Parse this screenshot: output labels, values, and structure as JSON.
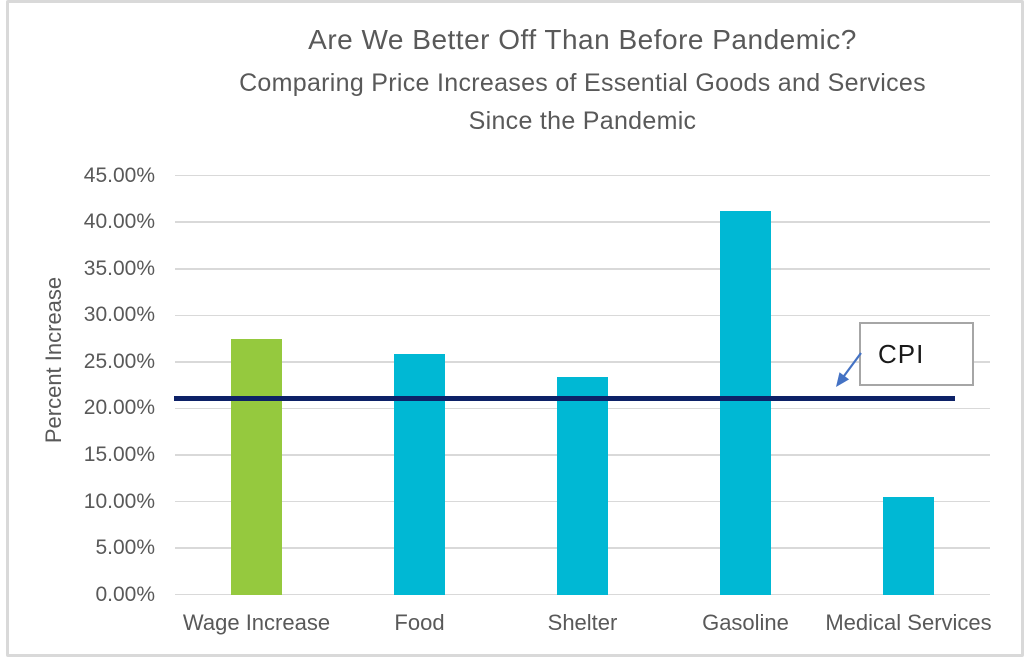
{
  "header": {
    "title": "Are We Better Off Than Before Pandemic?",
    "subtitle_line1": "Comparing Price Increases of Essential Goods and Services",
    "subtitle_line2": "Since the Pandemic"
  },
  "annotation": {
    "label": "CPI",
    "box_border_color": "#a6a6a6",
    "arrow_color": "#4472c4"
  },
  "colors": {
    "text_gray": "#595959",
    "gridline": "#d9d9d9",
    "frame_border": "#d9d9d9",
    "green_bar": "#95c93e",
    "cyan_bar": "#00b8d4",
    "cpi_line": "#0d2167"
  },
  "chart_data": {
    "type": "bar",
    "title": "Are We Better Off Than Before Pandemic?",
    "subtitle": "Comparing Price Increases of Essential Goods and Services Since the Pandemic",
    "categories": [
      "Wage Increase",
      "Food",
      "Shelter",
      "Gasoline",
      "Medical Services"
    ],
    "values": [
      27.5,
      25.8,
      23.4,
      41.2,
      10.5
    ],
    "bar_colors": [
      "#95c93e",
      "#00b8d4",
      "#00b8d4",
      "#00b8d4",
      "#00b8d4"
    ],
    "xlabel": "",
    "ylabel": "Percent Increase",
    "ylim": [
      0,
      45
    ],
    "ytick_interval": 5,
    "ytick_labels": [
      "0.00%",
      "5.00%",
      "10.00%",
      "15.00%",
      "20.00%",
      "25.00%",
      "30.00%",
      "35.00%",
      "40.00%",
      "45.00%"
    ],
    "grid": true,
    "legend_position": "none",
    "reference_line": {
      "label": "CPI",
      "value": 21.1,
      "color": "#0d2167"
    }
  }
}
